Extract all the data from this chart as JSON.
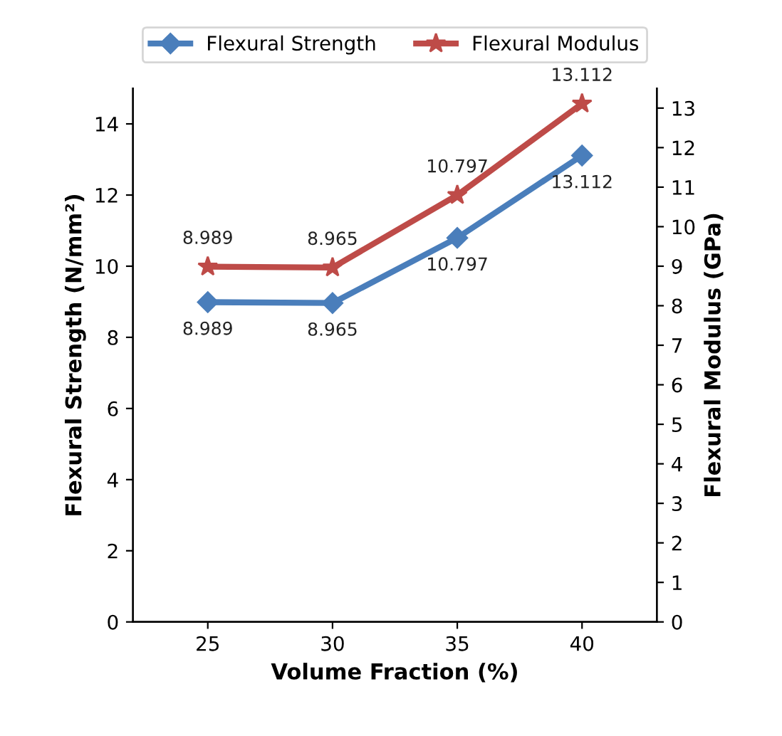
{
  "chart_data": {
    "type": "line",
    "xlabel": "Volume Fraction (%)",
    "ylabel": "Flexural Strength (N/mm²)",
    "y2label": "Flexural Modulus (GPa)",
    "categories": [
      "25",
      "30",
      "35",
      "40"
    ],
    "series": [
      {
        "name": "Flexural Strength",
        "color": "#4a7ebb",
        "marker": "diamond",
        "values": [
          8.989,
          8.965,
          10.797,
          13.112
        ]
      },
      {
        "name": "Flexural Modulus",
        "color": "#be4b48",
        "marker": "star",
        "axis": "y2",
        "values": [
          8.989,
          8.965,
          10.797,
          13.112
        ]
      }
    ],
    "ylim": [
      0,
      15
    ],
    "yticks": [
      0,
      2,
      4,
      6,
      8,
      10,
      12,
      14
    ],
    "y2lim": [
      0,
      13.5
    ],
    "y2ticks": [
      0,
      1,
      2,
      3,
      4,
      5,
      6,
      7,
      8,
      9,
      10,
      11,
      12,
      13
    ],
    "data_labels": true,
    "legend": "top",
    "grid": false,
    "line_style": "solid"
  }
}
